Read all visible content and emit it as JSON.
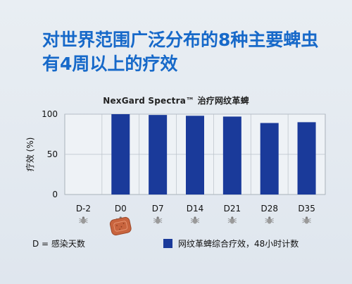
{
  "headline": {
    "line1": "对世界范围广泛分布的8种主要蜱虫",
    "line2": "有4周以上的疗效"
  },
  "chart_data": {
    "type": "bar",
    "title": "NexGard Spectra™   治疗网纹革蜱",
    "ylabel": "疗效 (%)",
    "xlabel": "",
    "categories": [
      "D-2",
      "D0",
      "D7",
      "D14",
      "D21",
      "D28",
      "D35"
    ],
    "values": [
      null,
      100,
      99,
      98,
      97,
      89,
      90
    ],
    "ylim": [
      0,
      100
    ],
    "yticks": [
      0,
      50,
      100
    ],
    "grid": true,
    "bar_color": "#1a3a9a",
    "series": [
      {
        "name": "网纹革蜱综合疗效，48小时计数",
        "values": [
          null,
          100,
          99,
          98,
          97,
          89,
          90
        ]
      }
    ],
    "legend_position": "bottom-right"
  },
  "legend": {
    "note": "D = 感染天数",
    "series_label": "网纹革蜱综合疗效，48小时计数"
  },
  "icons": [
    "tick-icon",
    "chewable-tablet-icon"
  ],
  "colors": {
    "headline": "#1769c9",
    "bar": "#1a3a9a",
    "tablet": "#c8643e"
  }
}
